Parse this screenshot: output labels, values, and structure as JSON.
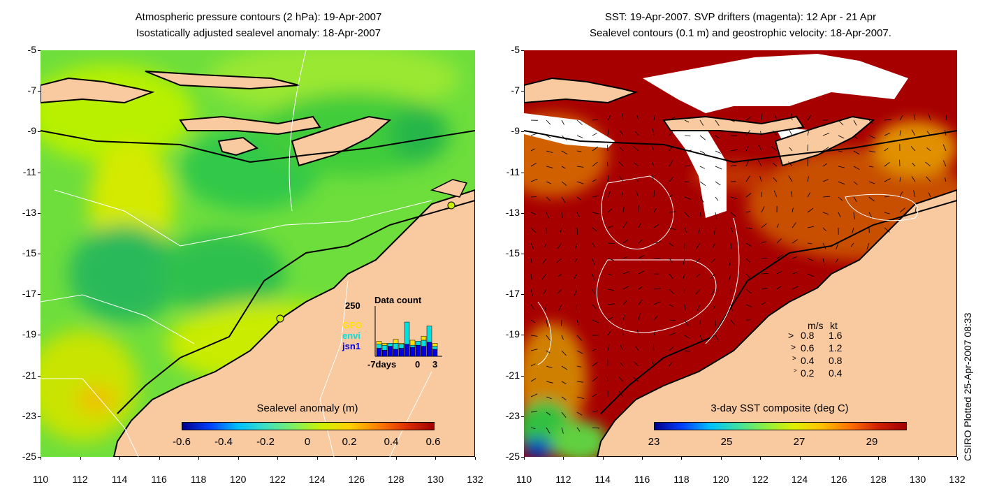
{
  "left_panel": {
    "title_line1": "Atmospheric pressure contours (2 hPa): 19-Apr-2007",
    "title_line2": "Isostatically adjusted sealevel anomaly: 18-Apr-2007",
    "colorbar": {
      "label": "Sealevel anomaly (m)",
      "ticks": [
        "-0.6",
        "-0.4",
        "-0.2",
        "0",
        "0.2",
        "0.4",
        "0.6"
      ]
    },
    "data_count": {
      "title": "Data count",
      "y_max_label": "250",
      "legend": [
        {
          "label": "GFO",
          "color": "#ffe100"
        },
        {
          "label": "envi",
          "color": "#00e0e0"
        },
        {
          "label": "jsn1",
          "color": "#0000e0"
        }
      ],
      "x_labels": [
        "-7days",
        "0",
        "3"
      ],
      "bars": [
        {
          "jsn1": 40,
          "envi": 20,
          "gfo": 15
        },
        {
          "jsn1": 30,
          "envi": 25,
          "gfo": 10
        },
        {
          "jsn1": 50,
          "envi": 15,
          "gfo": 0
        },
        {
          "jsn1": 35,
          "envi": 30,
          "gfo": 20
        },
        {
          "jsn1": 40,
          "envi": 20,
          "gfo": 5
        },
        {
          "jsn1": 60,
          "envi": 110,
          "gfo": 0
        },
        {
          "jsn1": 45,
          "envi": 10,
          "gfo": 25
        },
        {
          "jsn1": 55,
          "envi": 20,
          "gfo": 0
        },
        {
          "jsn1": 50,
          "envi": 30,
          "gfo": 20
        },
        {
          "jsn1": 70,
          "envi": 80,
          "gfo": 0
        },
        {
          "jsn1": 35,
          "envi": 15,
          "gfo": 15
        }
      ]
    }
  },
  "right_panel": {
    "title_line1": "SST: 19-Apr-2007. SVP drifters (magenta): 12 Apr - 21 Apr",
    "title_line2": "Sealevel contours (0.1 m) and geostrophic velocity: 18-Apr-2007.",
    "colorbar": {
      "label": "3-day SST composite (deg C)",
      "ticks": [
        "23",
        "25",
        "27",
        "29"
      ]
    },
    "velocity_legend": {
      "header_ms": "m/s",
      "header_kt": "kt",
      "rows": [
        {
          "ms": "0.8",
          "kt": "1.6"
        },
        {
          "ms": "0.6",
          "kt": "1.2"
        },
        {
          "ms": "0.4",
          "kt": "0.8"
        },
        {
          "ms": "0.2",
          "kt": "0.4"
        }
      ]
    }
  },
  "axes": {
    "y_ticks": [
      "-5",
      "-7",
      "-9",
      "-11",
      "-13",
      "-15",
      "-17",
      "-19",
      "-21",
      "-23",
      "-25"
    ],
    "x_ticks": [
      "110",
      "112",
      "114",
      "116",
      "118",
      "120",
      "122",
      "124",
      "126",
      "128",
      "130",
      "132"
    ]
  },
  "side_text": "CSIRO Plotted 25-Apr-2007 08:33",
  "colors": {
    "land": "#f9c9a0",
    "ocean_green": "#44d444",
    "ocean_yellowgreen": "#c8f000",
    "sst_red": "#a80000",
    "sst_orange": "#c24a00"
  }
}
